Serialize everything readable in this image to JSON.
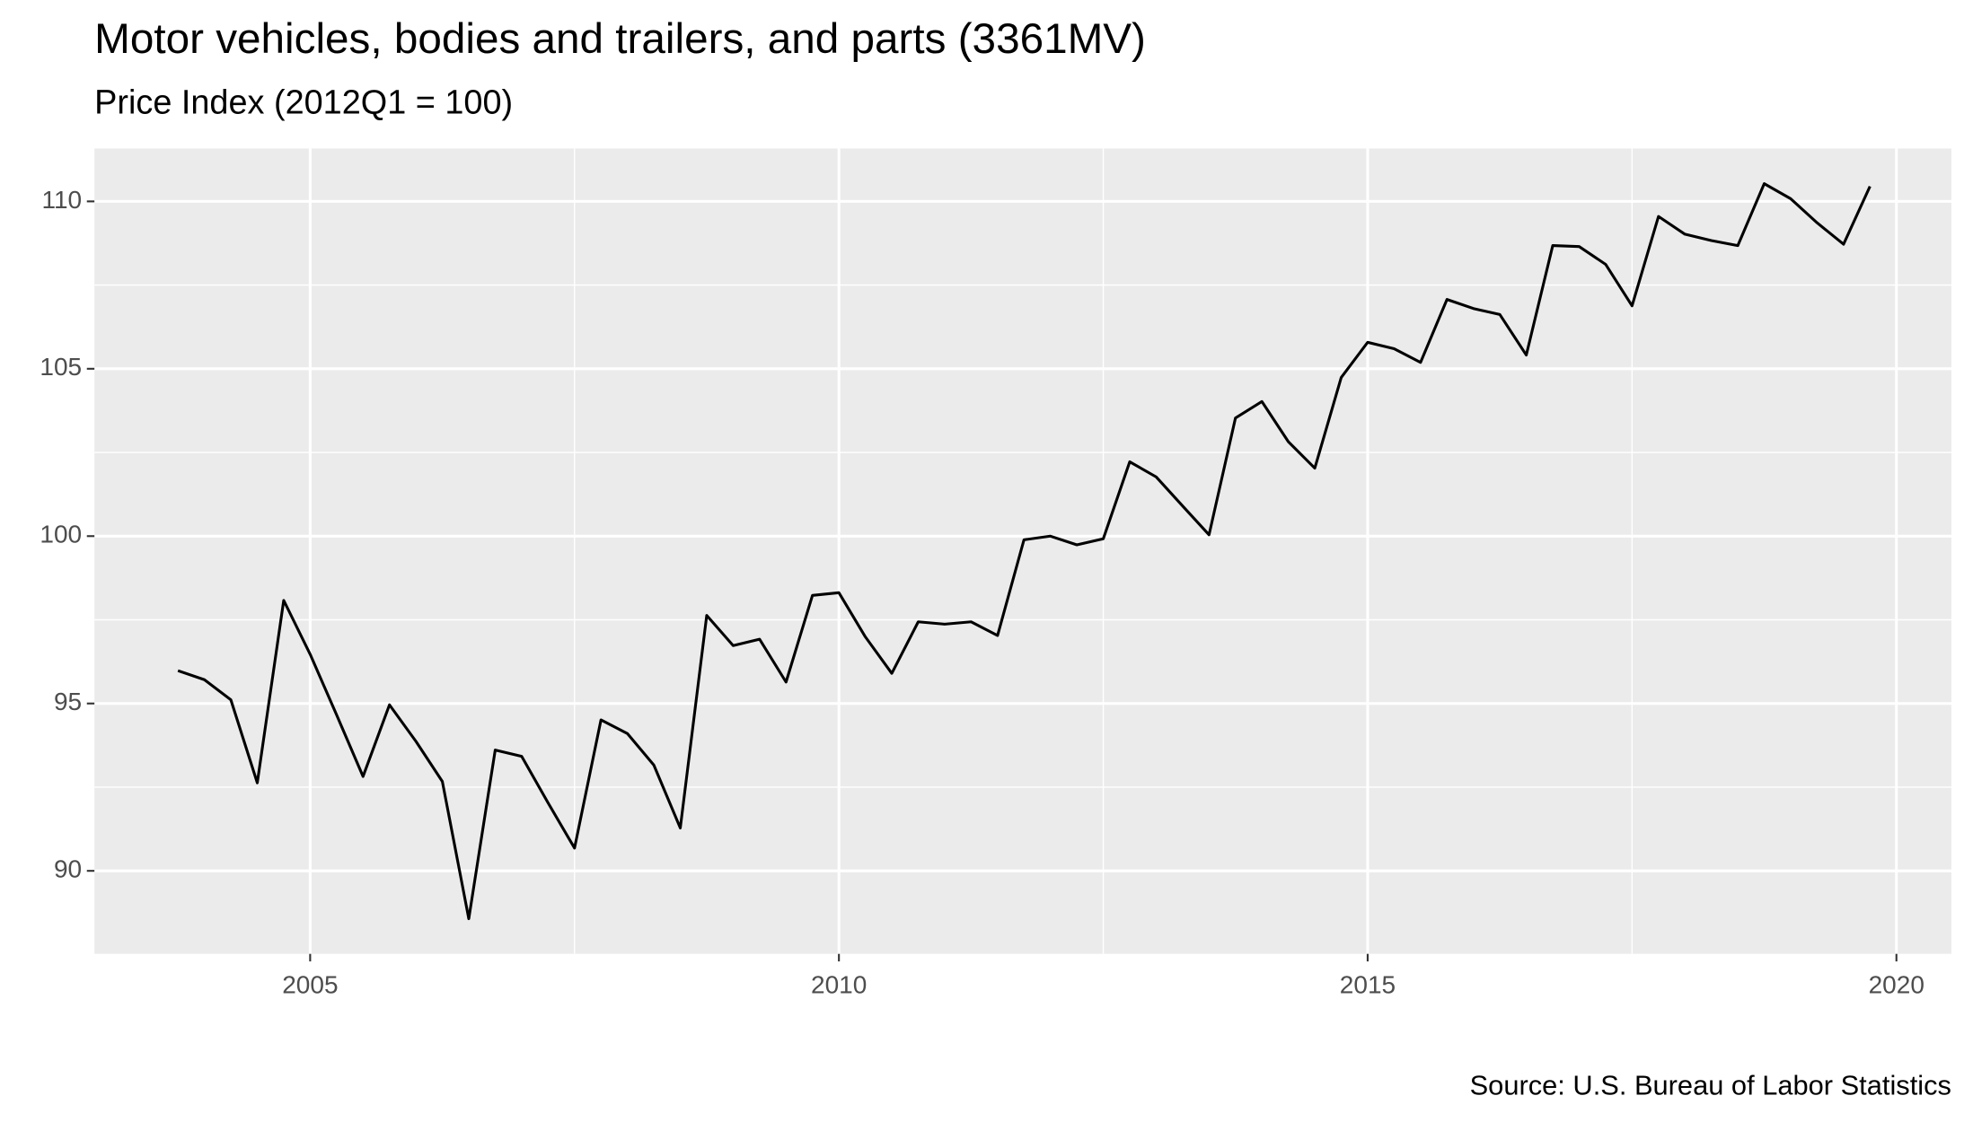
{
  "chart_data": {
    "type": "line",
    "title": "Motor vehicles, bodies and trailers, and parts (3361MV)",
    "subtitle": "Price Index (2012Q1 = 100)",
    "caption": "Source: U.S. Bureau of Labor Statistics",
    "x": [
      2003.75,
      2004,
      2004.25,
      2004.5,
      2004.75,
      2005,
      2005.25,
      2005.5,
      2005.75,
      2006,
      2006.25,
      2006.5,
      2006.75,
      2007,
      2007.25,
      2007.5,
      2007.75,
      2008,
      2008.25,
      2008.5,
      2008.75,
      2009,
      2009.25,
      2009.5,
      2009.75,
      2010,
      2010.25,
      2010.5,
      2010.75,
      2011,
      2011.25,
      2011.5,
      2011.75,
      2012,
      2012.25,
      2012.5,
      2012.75,
      2013,
      2013.25,
      2013.5,
      2013.75,
      2014,
      2014.25,
      2014.5,
      2014.75,
      2015,
      2015.25,
      2015.5,
      2015.75,
      2016,
      2016.25,
      2016.5,
      2016.75,
      2017,
      2017.25,
      2017.5,
      2017.75,
      2018,
      2018.25,
      2018.5,
      2018.75,
      2019,
      2019.25,
      2019.5,
      2019.75
    ],
    "series": [
      {
        "color": "#000000",
        "values": [
          95.98,
          95.71,
          95.11,
          92.63,
          98.08,
          96.47,
          94.66,
          92.82,
          94.96,
          93.87,
          92.67,
          88.57,
          93.61,
          93.42,
          92.03,
          90.68,
          94.51,
          94.1,
          93.16,
          91.28,
          97.63,
          96.73,
          96.92,
          95.64,
          98.23,
          98.31,
          96.99,
          95.9,
          97.44,
          97.37,
          97.44,
          97.03,
          99.89,
          100.0,
          99.74,
          99.92,
          102.22,
          101.77,
          100.9,
          100.04,
          103.53,
          104.02,
          102.82,
          102.03,
          104.74,
          105.79,
          105.6,
          105.19,
          107.07,
          106.8,
          106.62,
          105.41,
          108.68,
          108.65,
          108.12,
          106.88,
          109.55,
          109.02,
          108.83,
          108.68,
          110.53,
          110.08,
          109.36,
          108.72,
          110.45
        ]
      }
    ],
    "xlim": [
      2002.96,
      2020.52
    ],
    "ylim": [
      87.52,
      111.58
    ],
    "xticks": [
      2005,
      2010,
      2015,
      2020
    ],
    "yticks": [
      90,
      95,
      100,
      105,
      110
    ],
    "grid": true
  }
}
